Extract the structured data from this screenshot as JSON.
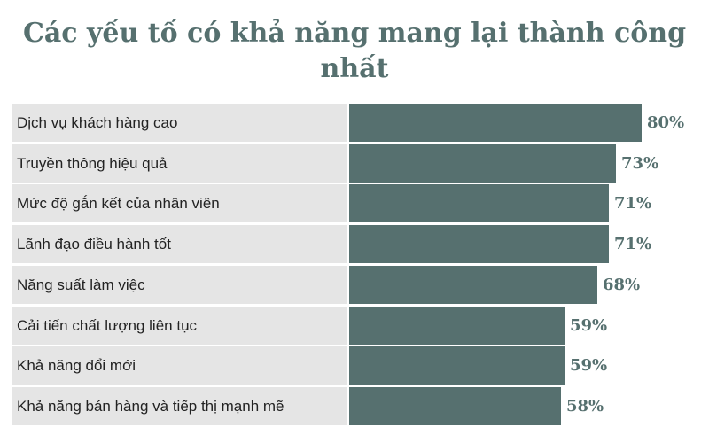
{
  "chart_data": {
    "type": "bar",
    "orientation": "horizontal",
    "title": "Các yếu tố có khả năng mang lại thành công nhất",
    "categories": [
      "Dịch vụ khách hàng cao",
      "Truyền thông hiệu quả",
      "Mức độ gắn kết của nhân viên",
      "Lãnh đạo điều hành tốt",
      "Năng suất làm việc",
      "Cải tiến chất lượng liên tục",
      "Khả năng đổi mới",
      "Khả năng bán hàng và tiếp thị mạnh mẽ"
    ],
    "values": [
      80,
      73,
      71,
      71,
      68,
      59,
      59,
      58
    ],
    "value_labels": [
      "80%",
      "73%",
      "71%",
      "71%",
      "68%",
      "59%",
      "59%",
      "58%"
    ],
    "xlim": [
      0,
      100
    ],
    "grid": false,
    "legend": "none"
  },
  "colors": {
    "bar": "#56706f",
    "row_background": "#e5e5e5",
    "title": "#56706f"
  }
}
